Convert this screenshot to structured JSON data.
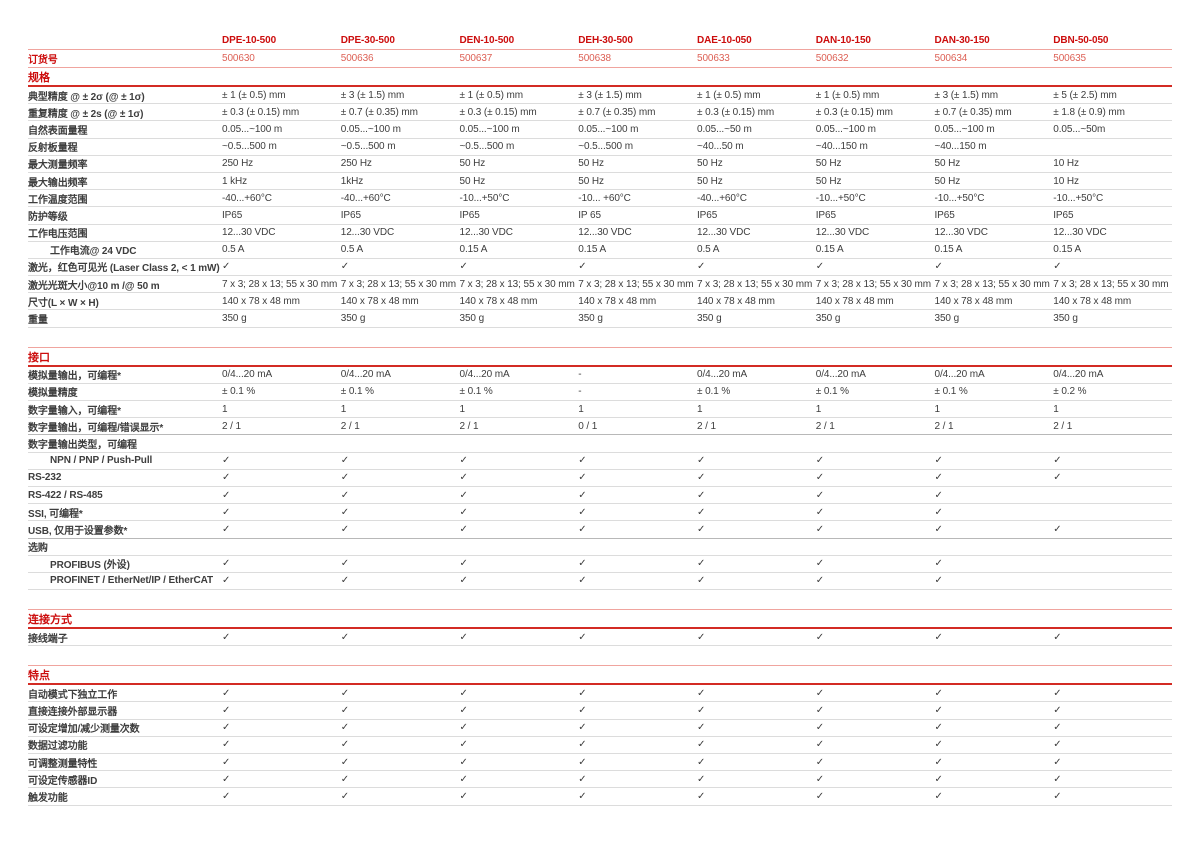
{
  "colors": {
    "accent_red": "#cc0d0d",
    "order_red": "#dd6156",
    "line_red": "#d32b24",
    "line_salmon": "#f0a49e",
    "row_line": "#dcdcdc",
    "text": "#3d3d3d"
  },
  "check_glyph": "✓",
  "order_label": "订货号",
  "products": [
    {
      "name": "DPE-10-500",
      "order_no": "500630"
    },
    {
      "name": "DPE-30-500",
      "order_no": "500636"
    },
    {
      "name": "DEN-10-500",
      "order_no": "500637"
    },
    {
      "name": "DEH-30-500",
      "order_no": "500638"
    },
    {
      "name": "DAE-10-050",
      "order_no": "500633"
    },
    {
      "name": "DAN-10-150",
      "order_no": "500632"
    },
    {
      "name": "DAN-30-150",
      "order_no": "500634"
    },
    {
      "name": "DBN-50-050",
      "order_no": "500635"
    }
  ],
  "sections": [
    {
      "title": "规格",
      "rows": [
        {
          "label": "典型精度 @ ± 2σ (@ ± 1σ)",
          "values": [
            "± 1 (± 0.5) mm",
            "± 3 (± 1.5) mm",
            "± 1 (± 0.5) mm",
            "± 3 (± 1.5) mm",
            "± 1 (± 0.5) mm",
            "± 1 (± 0.5) mm",
            "± 3 (± 1.5) mm",
            "± 5 (± 2.5) mm"
          ]
        },
        {
          "label": "重复精度 @ ± 2s (@ ± 1σ)",
          "values": [
            "± 0.3 (± 0.15) mm",
            "± 0.7 (± 0.35) mm",
            "± 0.3 (± 0.15) mm",
            "± 0.7 (± 0.35) mm",
            "± 0.3 (± 0.15) mm",
            "± 0.3 (± 0.15) mm",
            "± 0.7 (± 0.35) mm",
            "± 1.8 (± 0.9) mm"
          ]
        },
        {
          "label": "自然表面量程",
          "values": [
            "0.05...~100 m",
            "0.05...~100 m",
            "0.05...~100 m",
            "0.05...~100 m",
            "0.05...~50 m",
            "0.05...~100 m",
            "0.05...~100 m",
            "0.05...~50m"
          ]
        },
        {
          "label": "反射板量程",
          "values": [
            "~0.5...500 m",
            "~0.5...500 m",
            "~0.5...500 m",
            "~0.5...500 m",
            "~40...50 m",
            "~40...150 m",
            "~40...150 m",
            ""
          ]
        },
        {
          "label": "最大测量频率",
          "values": [
            "250 Hz",
            "250 Hz",
            "50 Hz",
            "50 Hz",
            "50 Hz",
            "50 Hz",
            "50 Hz",
            "10 Hz"
          ]
        },
        {
          "label": "最大输出频率",
          "values": [
            "1 kHz",
            "1kHz",
            "50 Hz",
            "50 Hz",
            "50 Hz",
            "50 Hz",
            "50 Hz",
            "10 Hz"
          ]
        },
        {
          "label": "工作温度范围",
          "values": [
            "-40...+60°C",
            "-40...+60°C",
            "-10...+50°C",
            "-10... +60°C",
            "-40...+60°C",
            "-10...+50°C",
            "-10...+50°C",
            "-10...+50°C"
          ]
        },
        {
          "label": "防护等级",
          "values": [
            "IP65",
            "IP65",
            "IP65",
            "IP 65",
            "IP65",
            "IP65",
            "IP65",
            "IP65"
          ]
        },
        {
          "label": "工作电压范围",
          "values": [
            "12...30 VDC",
            "12...30 VDC",
            "12...30 VDC",
            "12...30 VDC",
            "12...30 VDC",
            "12...30 VDC",
            "12...30 VDC",
            "12...30 VDC"
          ]
        },
        {
          "label": "工作电流@ 24 VDC",
          "indent": true,
          "values": [
            "0.5 A",
            "0.5 A",
            "0.15 A",
            "0.15 A",
            "0.5 A",
            "0.15 A",
            "0.15 A",
            "0.15 A"
          ]
        },
        {
          "label": "激光，红色可见光 (Laser Class 2, < 1 mW)",
          "values": [
            "✓",
            "✓",
            "✓",
            "✓",
            "✓",
            "✓",
            "✓",
            "✓"
          ]
        },
        {
          "label": "激光光斑大小@10 m /@ 50 m",
          "values": [
            "7 x 3; 28 x 13; 55 x 30 mm",
            "7 x 3; 28 x 13; 55 x 30 mm",
            "7 x 3; 28 x 13; 55 x 30 mm",
            "7 x 3; 28 x 13; 55 x 30 mm",
            "7 x 3; 28 x 13; 55 x 30 mm",
            "7 x 3; 28 x 13; 55 x 30 mm",
            "7 x 3; 28 x 13; 55 x 30 mm",
            "7 x 3; 28 x 13; 55 x 30 mm"
          ]
        },
        {
          "label": "尺寸(L × W × H)",
          "values": [
            "140 x 78 x 48 mm",
            "140 x 78 x 48 mm",
            "140 x 78 x 48 mm",
            "140 x 78 x 48 mm",
            "140 x 78 x 48 mm",
            "140 x 78 x 48 mm",
            "140 x 78 x 48 mm",
            "140 x 78 x 48 mm"
          ]
        },
        {
          "label": "重量",
          "values": [
            "350 g",
            "350 g",
            "350 g",
            "350 g",
            "350 g",
            "350 g",
            "350 g",
            "350 g"
          ]
        }
      ]
    },
    {
      "title": "接口",
      "rows": [
        {
          "label": "模拟量输出，可编程*",
          "values": [
            "0/4...20 mA",
            "0/4...20 mA",
            "0/4...20 mA",
            "-",
            "0/4...20 mA",
            "0/4...20 mA",
            "0/4...20 mA",
            "0/4...20 mA"
          ]
        },
        {
          "label": "模拟量精度",
          "values": [
            "± 0.1 %",
            "± 0.1 %",
            "± 0.1 %",
            "-",
            "± 0.1 %",
            "± 0.1 %",
            "± 0.1 %",
            "± 0.2 %"
          ]
        },
        {
          "label": "数字量输入，可编程*",
          "values": [
            "1",
            "1",
            "1",
            "1",
            "1",
            "1",
            "1",
            "1"
          ]
        },
        {
          "label": "数字量输出，可编程/错误显示*",
          "values": [
            "2 / 1",
            "2 / 1",
            "2 / 1",
            "0 / 1",
            "2 / 1",
            "2 / 1",
            "2 / 1",
            "2 / 1"
          ]
        },
        {
          "label": "数字量输出类型，可编程",
          "group": true,
          "values": [
            "",
            "",
            "",
            "",
            "",
            "",
            "",
            ""
          ]
        },
        {
          "label": "NPN / PNP / Push-Pull",
          "indent": true,
          "values": [
            "✓",
            "✓",
            "✓",
            "✓",
            "✓",
            "✓",
            "✓",
            "✓"
          ]
        },
        {
          "label": "RS-232",
          "values": [
            "✓",
            "✓",
            "✓",
            "✓",
            "✓",
            "✓",
            "✓",
            "✓"
          ]
        },
        {
          "label": "RS-422 / RS-485",
          "values": [
            "✓",
            "✓",
            "✓",
            "✓",
            "✓",
            "✓",
            "✓",
            ""
          ]
        },
        {
          "label": "SSI, 可编程*",
          "values": [
            "✓",
            "✓",
            "✓",
            "✓",
            "✓",
            "✓",
            "✓",
            ""
          ]
        },
        {
          "label": "USB, 仅用于设置参数*",
          "values": [
            "✓",
            "✓",
            "✓",
            "✓",
            "✓",
            "✓",
            "✓",
            "✓"
          ]
        },
        {
          "label": "选购",
          "group": true,
          "values": [
            "",
            "",
            "",
            "",
            "",
            "",
            "",
            ""
          ]
        },
        {
          "label": "PROFIBUS (外设)",
          "indent": true,
          "values": [
            "✓",
            "✓",
            "✓",
            "✓",
            "✓",
            "✓",
            "✓",
            ""
          ]
        },
        {
          "label": "PROFINET / EtherNet/IP / EtherCAT",
          "indent": true,
          "values": [
            "✓",
            "✓",
            "✓",
            "✓",
            "✓",
            "✓",
            "✓",
            ""
          ]
        }
      ]
    },
    {
      "title": "连接方式",
      "rows": [
        {
          "label": "接线端子",
          "values": [
            "✓",
            "✓",
            "✓",
            "✓",
            "✓",
            "✓",
            "✓",
            "✓"
          ]
        }
      ]
    },
    {
      "title": "特点",
      "rows": [
        {
          "label": "自动模式下独立工作",
          "values": [
            "✓",
            "✓",
            "✓",
            "✓",
            "✓",
            "✓",
            "✓",
            "✓"
          ]
        },
        {
          "label": "直接连接外部显示器",
          "values": [
            "✓",
            "✓",
            "✓",
            "✓",
            "✓",
            "✓",
            "✓",
            "✓"
          ]
        },
        {
          "label": "可设定增加/减少测量次数",
          "values": [
            "✓",
            "✓",
            "✓",
            "✓",
            "✓",
            "✓",
            "✓",
            "✓"
          ]
        },
        {
          "label": "数据过滤功能",
          "values": [
            "✓",
            "✓",
            "✓",
            "✓",
            "✓",
            "✓",
            "✓",
            "✓"
          ]
        },
        {
          "label": "可调整测量特性",
          "values": [
            "✓",
            "✓",
            "✓",
            "✓",
            "✓",
            "✓",
            "✓",
            "✓"
          ]
        },
        {
          "label": "可设定传感器ID",
          "values": [
            "✓",
            "✓",
            "✓",
            "✓",
            "✓",
            "✓",
            "✓",
            "✓"
          ]
        },
        {
          "label": "触发功能",
          "values": [
            "✓",
            "✓",
            "✓",
            "✓",
            "✓",
            "✓",
            "✓",
            "✓"
          ]
        }
      ]
    }
  ]
}
